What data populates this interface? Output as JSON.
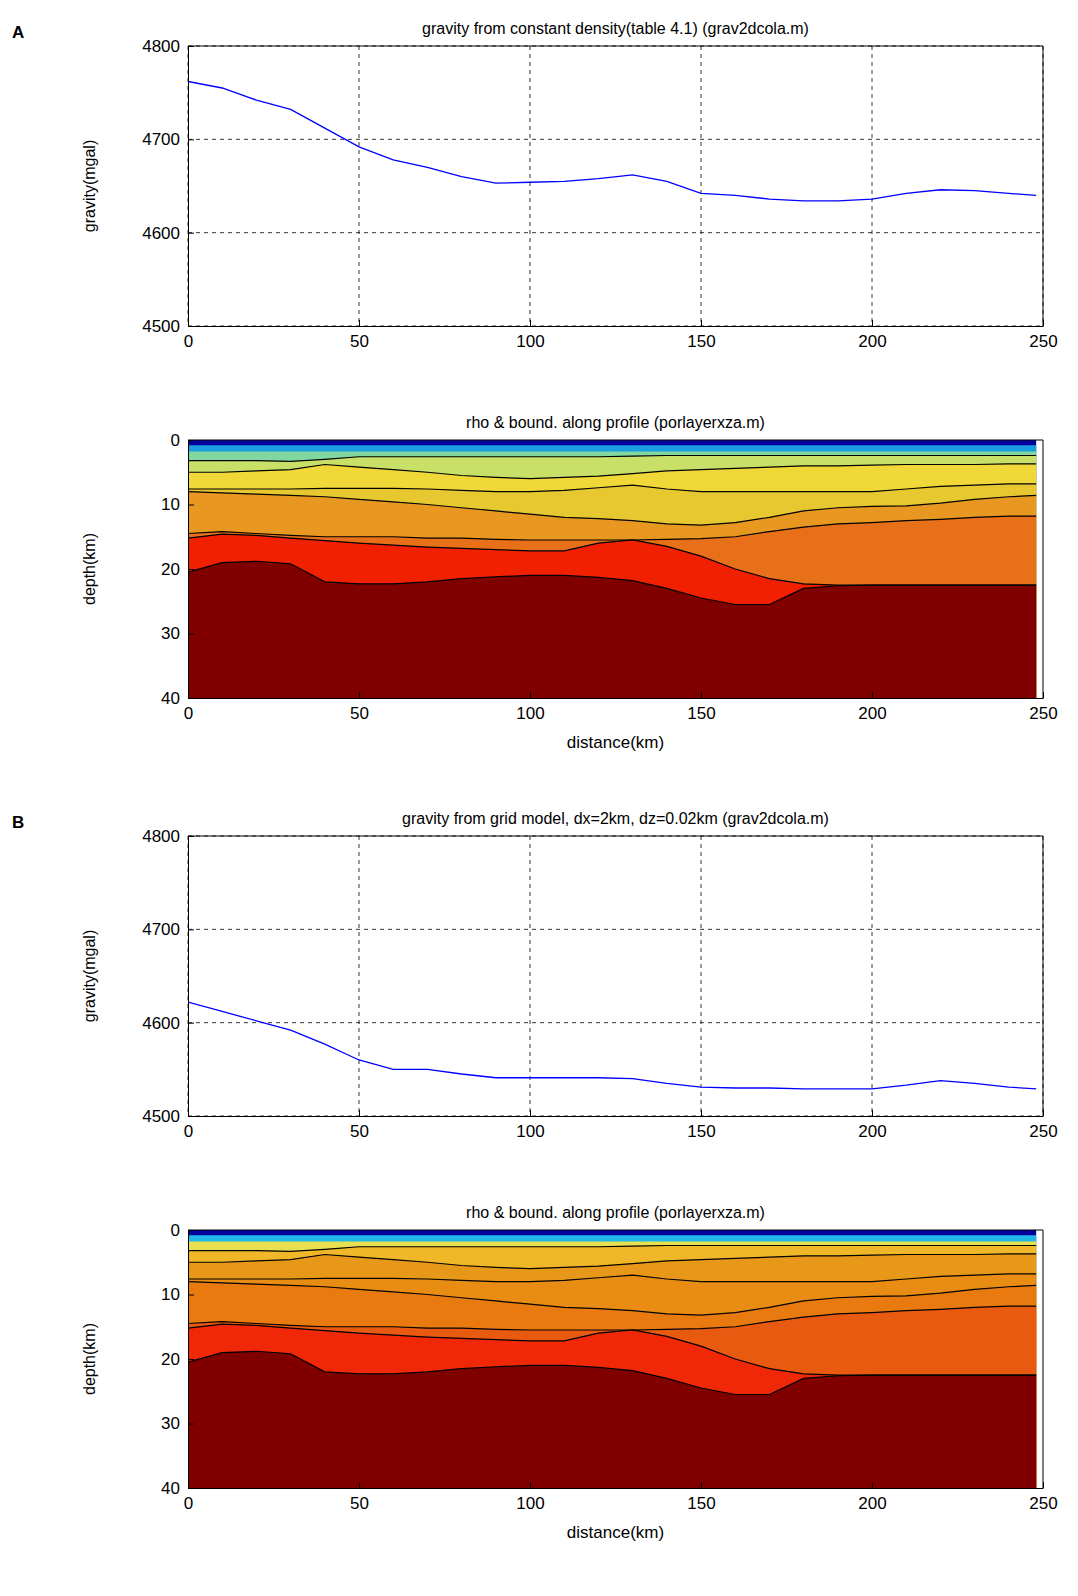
{
  "chart_data": [
    {
      "type": "line",
      "panel_label": "A",
      "title": "gravity from constant density(table 4.1)  (grav2dcola.m)",
      "ylabel": "gravity(mgal)",
      "x": [
        0,
        10,
        20,
        30,
        40,
        50,
        60,
        70,
        80,
        90,
        100,
        110,
        120,
        130,
        140,
        150,
        160,
        170,
        180,
        190,
        200,
        210,
        220,
        230,
        240,
        248
      ],
      "values": [
        4762,
        4755,
        4742,
        4732,
        4712,
        4692,
        4678,
        4670,
        4660,
        4653,
        4654,
        4655,
        4658,
        4662,
        4655,
        4642,
        4640,
        4636,
        4634,
        4634,
        4636,
        4642,
        4646,
        4645,
        4642,
        4640
      ],
      "color": "#0000ff",
      "xlim": [
        0,
        250
      ],
      "xticks": [
        0,
        50,
        100,
        150,
        200,
        250
      ],
      "ylim": [
        4500,
        4800
      ],
      "yticks": [
        4500,
        4600,
        4700,
        4800
      ],
      "grid": true
    },
    {
      "type": "section",
      "title": "rho & bound. along profile (porlayerxza.m)",
      "xlabel": "distance(km)",
      "ylabel": "depth(km)",
      "color": "#00009f",
      "x": [
        0,
        10,
        20,
        30,
        40,
        50,
        60,
        70,
        80,
        90,
        100,
        110,
        120,
        130,
        140,
        150,
        160,
        170,
        180,
        190,
        200,
        210,
        220,
        230,
        240,
        248
      ],
      "series": [
        {
          "color": "#1a9ee0",
          "line_style": "none",
          "values": [
            0.8,
            0.8,
            0.8,
            0.8,
            0.8,
            0.8,
            0.8,
            0.8,
            0.8,
            0.8,
            0.8,
            0.8,
            0.8,
            0.8,
            0.8,
            0.8,
            0.8,
            0.8,
            0.8,
            0.8,
            0.8,
            0.8,
            0.8,
            0.8,
            0.8,
            0.8
          ]
        },
        {
          "color": "#80d8a0",
          "line_style": "none",
          "values": [
            1.8,
            1.8,
            1.8,
            1.8,
            1.8,
            1.8,
            1.8,
            1.8,
            1.8,
            1.8,
            1.8,
            1.8,
            1.8,
            1.8,
            1.8,
            1.8,
            1.8,
            1.8,
            1.8,
            1.8,
            1.8,
            1.8,
            1.8,
            1.8,
            1.8,
            1.8
          ]
        },
        {
          "color": "#c8e068",
          "line_style": "solid",
          "values": [
            3.2,
            3.2,
            3.2,
            3.3,
            3.0,
            2.6,
            2.6,
            2.6,
            2.6,
            2.6,
            2.6,
            2.6,
            2.6,
            2.5,
            2.4,
            2.4,
            2.4,
            2.4,
            2.4,
            2.4,
            2.4,
            2.4,
            2.4,
            2.4,
            2.4,
            2.4
          ]
        },
        {
          "color": "#f0d838",
          "line_style": "solid",
          "values": [
            5.0,
            5.0,
            4.8,
            4.6,
            3.8,
            4.2,
            4.6,
            5.0,
            5.5,
            5.8,
            6.0,
            5.8,
            5.6,
            5.2,
            4.8,
            4.6,
            4.4,
            4.2,
            4.0,
            4.0,
            3.9,
            3.8,
            3.8,
            3.8,
            3.7,
            3.7
          ]
        },
        {
          "color": "#e8c830",
          "line_style": "solid",
          "values": [
            7.6,
            7.6,
            7.6,
            7.6,
            7.5,
            7.5,
            7.5,
            7.6,
            7.8,
            8.0,
            8.0,
            7.8,
            7.4,
            7.0,
            7.6,
            8.0,
            8.0,
            8.0,
            8.0,
            8.0,
            8.0,
            7.6,
            7.2,
            7.0,
            6.8,
            6.8
          ]
        },
        {
          "color": "#e89820",
          "line_style": "solid",
          "values": [
            8.0,
            8.2,
            8.4,
            8.6,
            8.8,
            9.2,
            9.6,
            10.0,
            10.5,
            11.0,
            11.5,
            12.0,
            12.2,
            12.5,
            13.0,
            13.2,
            12.8,
            12.0,
            11.0,
            10.5,
            10.3,
            10.2,
            9.8,
            9.2,
            8.8,
            8.6
          ]
        },
        {
          "color": "#e87018",
          "line_style": "solid",
          "values": [
            14.5,
            14.2,
            14.5,
            14.8,
            15.0,
            15.0,
            15.0,
            15.2,
            15.2,
            15.4,
            15.5,
            15.5,
            15.5,
            15.5,
            15.4,
            15.3,
            15.0,
            14.2,
            13.5,
            13.0,
            12.8,
            12.5,
            12.3,
            12.0,
            11.8,
            11.8
          ]
        },
        {
          "color": "#f02000",
          "line_style": "solid",
          "values": [
            15.2,
            14.6,
            14.8,
            15.2,
            15.6,
            16.0,
            16.3,
            16.6,
            16.8,
            17.0,
            17.2,
            17.2,
            16.0,
            15.5,
            16.5,
            18.0,
            20.0,
            21.5,
            22.3,
            22.5,
            22.5,
            22.5,
            22.5,
            22.5,
            22.5,
            22.5
          ]
        },
        {
          "color": "#800000",
          "line_style": "solid",
          "values": [
            20.5,
            19.0,
            18.8,
            19.2,
            22.0,
            22.3,
            22.3,
            22.0,
            21.5,
            21.2,
            21.0,
            21.0,
            21.3,
            21.8,
            23.0,
            24.5,
            25.5,
            25.5,
            23.0,
            22.6,
            22.5,
            22.5,
            22.5,
            22.5,
            22.5,
            22.5
          ]
        }
      ],
      "xlim": [
        0,
        250
      ],
      "xticks": [
        0,
        50,
        100,
        150,
        200,
        250
      ],
      "ylim": [
        40,
        0
      ],
      "yticks": [
        0,
        10,
        20,
        30,
        40
      ]
    },
    {
      "type": "line",
      "panel_label": "B",
      "title": "gravity from grid model, dx=2km, dz=0.02km   (grav2dcola.m)",
      "ylabel": "gravity(mgal)",
      "x": [
        0,
        10,
        20,
        30,
        40,
        50,
        60,
        70,
        80,
        90,
        100,
        110,
        120,
        130,
        140,
        150,
        160,
        170,
        180,
        190,
        200,
        210,
        220,
        230,
        240,
        248
      ],
      "values": [
        4622,
        4612,
        4602,
        4592,
        4577,
        4560,
        4550,
        4550,
        4545,
        4541,
        4541,
        4541,
        4541,
        4540,
        4535,
        4531,
        4530,
        4530,
        4529,
        4529,
        4529,
        4533,
        4538,
        4535,
        4531,
        4529
      ],
      "color": "#0000ff",
      "xlim": [
        0,
        250
      ],
      "xticks": [
        0,
        50,
        100,
        150,
        200,
        250
      ],
      "ylim": [
        4500,
        4800
      ],
      "yticks": [
        4500,
        4600,
        4700,
        4800
      ],
      "grid": true
    },
    {
      "type": "section",
      "title": "rho & bound. along profile (porlayerxza.m)",
      "xlabel": "distance(km)",
      "ylabel": "depth(km)",
      "color": "#00009f",
      "x": [
        0,
        10,
        20,
        30,
        40,
        50,
        60,
        70,
        80,
        90,
        100,
        110,
        120,
        130,
        140,
        150,
        160,
        170,
        180,
        190,
        200,
        210,
        220,
        230,
        240,
        248
      ],
      "series": [
        {
          "color": "#20b8e8",
          "line_style": "none",
          "values": [
            0.8,
            0.8,
            0.8,
            0.8,
            0.8,
            0.8,
            0.8,
            0.8,
            0.8,
            0.8,
            0.8,
            0.8,
            0.8,
            0.8,
            0.8,
            0.8,
            0.8,
            0.8,
            0.8,
            0.8,
            0.8,
            0.8,
            0.8,
            0.8,
            0.8,
            0.8
          ]
        },
        {
          "color": "#e8e050",
          "line_style": "none",
          "values": [
            1.8,
            1.8,
            1.8,
            1.8,
            1.8,
            1.8,
            1.8,
            1.8,
            1.8,
            1.8,
            1.8,
            1.8,
            1.8,
            1.8,
            1.8,
            1.8,
            1.8,
            1.8,
            1.8,
            1.8,
            1.8,
            1.8,
            1.8,
            1.8,
            1.8,
            1.8
          ]
        },
        {
          "color": "#f0b828",
          "line_style": "solid",
          "values": [
            3.2,
            3.2,
            3.2,
            3.3,
            3.0,
            2.6,
            2.6,
            2.6,
            2.6,
            2.6,
            2.6,
            2.6,
            2.6,
            2.5,
            2.4,
            2.4,
            2.4,
            2.4,
            2.4,
            2.4,
            2.4,
            2.4,
            2.4,
            2.4,
            2.4,
            2.4
          ]
        },
        {
          "color": "#e89818",
          "line_style": "solid",
          "values": [
            5.0,
            5.0,
            4.8,
            4.6,
            3.8,
            4.2,
            4.6,
            5.0,
            5.5,
            5.8,
            6.0,
            5.8,
            5.6,
            5.2,
            4.8,
            4.6,
            4.4,
            4.2,
            4.0,
            4.0,
            3.9,
            3.8,
            3.8,
            3.8,
            3.7,
            3.7
          ]
        },
        {
          "color": "#e88c14",
          "line_style": "solid",
          "values": [
            7.6,
            7.6,
            7.6,
            7.6,
            7.5,
            7.5,
            7.5,
            7.6,
            7.8,
            8.0,
            8.0,
            7.8,
            7.4,
            7.0,
            7.6,
            8.0,
            8.0,
            8.0,
            8.0,
            8.0,
            8.0,
            7.6,
            7.2,
            7.0,
            6.8,
            6.8
          ]
        },
        {
          "color": "#e87a10",
          "line_style": "solid",
          "values": [
            8.0,
            8.2,
            8.4,
            8.6,
            8.8,
            9.2,
            9.6,
            10.0,
            10.5,
            11.0,
            11.5,
            12.0,
            12.2,
            12.5,
            13.0,
            13.2,
            12.8,
            12.0,
            11.0,
            10.5,
            10.3,
            10.2,
            9.8,
            9.2,
            8.8,
            8.6
          ]
        },
        {
          "color": "#e85a10",
          "line_style": "solid",
          "values": [
            14.5,
            14.2,
            14.5,
            14.8,
            15.0,
            15.0,
            15.0,
            15.2,
            15.2,
            15.4,
            15.5,
            15.5,
            15.5,
            15.5,
            15.4,
            15.3,
            15.0,
            14.2,
            13.5,
            13.0,
            12.8,
            12.5,
            12.3,
            12.0,
            11.8,
            11.8
          ]
        },
        {
          "color": "#f02808",
          "line_style": "solid",
          "values": [
            15.2,
            14.6,
            14.8,
            15.2,
            15.6,
            16.0,
            16.3,
            16.6,
            16.8,
            17.0,
            17.2,
            17.2,
            16.0,
            15.5,
            16.5,
            18.0,
            20.0,
            21.5,
            22.3,
            22.5,
            22.5,
            22.5,
            22.5,
            22.5,
            22.5,
            22.5
          ]
        },
        {
          "color": "#800000",
          "line_style": "solid",
          "values": [
            20.5,
            19.0,
            18.8,
            19.2,
            22.0,
            22.3,
            22.3,
            22.0,
            21.5,
            21.2,
            21.0,
            21.0,
            21.3,
            21.8,
            23.0,
            24.5,
            25.5,
            25.5,
            23.0,
            22.6,
            22.5,
            22.5,
            22.5,
            22.5,
            22.5,
            22.5
          ]
        }
      ],
      "xlim": [
        0,
        250
      ],
      "xticks": [
        0,
        50,
        100,
        150,
        200,
        250
      ],
      "ylim": [
        40,
        0
      ],
      "yticks": [
        0,
        10,
        20,
        30,
        40
      ]
    }
  ]
}
